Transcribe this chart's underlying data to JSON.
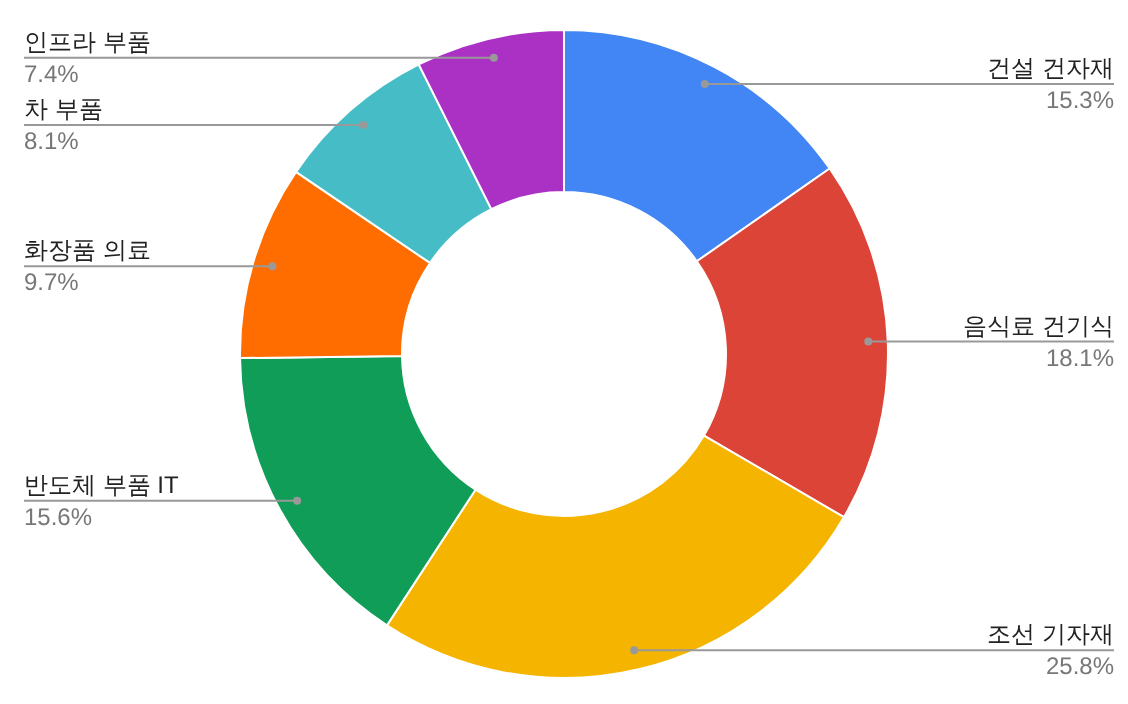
{
  "chart_data": {
    "type": "donut",
    "categories": [
      "건설 건자재",
      "음식료 건기식",
      "조선 기자재",
      "반도체 부품 IT",
      "화장품 의료",
      "차 부품",
      "인프라 부품"
    ],
    "values": [
      15.3,
      18.1,
      25.8,
      15.6,
      9.7,
      8.1,
      7.4
    ],
    "value_labels": [
      "15.3%",
      "18.1%",
      "25.8%",
      "15.6%",
      "9.7%",
      "8.1%",
      "7.4%"
    ],
    "colors": [
      "#4285f4",
      "#db4437",
      "#f4b400",
      "#0f9d58",
      "#ff6d01",
      "#46bdc6",
      "#ab30c4"
    ]
  }
}
